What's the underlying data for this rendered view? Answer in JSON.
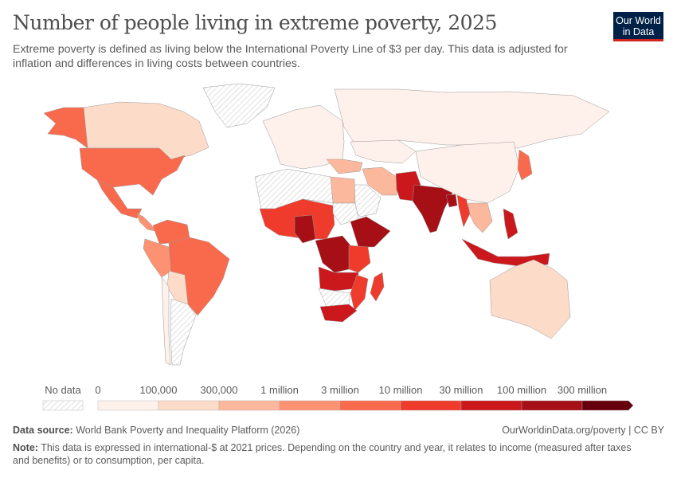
{
  "title": "Number of people living in extreme poverty, 2025",
  "subtitle": "Extreme poverty is defined as living below the International Poverty Line of $3 per day. This data is adjusted for inflation and differences in living costs between countries.",
  "logo": {
    "line1": "Our World",
    "line2": "in Data",
    "bg": "#002147",
    "accent": "#ce261e"
  },
  "legend": {
    "no_data": "No data",
    "labels": [
      "0",
      "100,000",
      "300,000",
      "1 million",
      "3 million",
      "10 million",
      "30 million",
      "100 million",
      "300 million"
    ],
    "colors": [
      "#fef0ea",
      "#fddbc9",
      "#fcb89c",
      "#fc9272",
      "#f96a4d",
      "#ef3b2c",
      "#cb181d",
      "#a50f15",
      "#67000d"
    ]
  },
  "map_data": {
    "Greenland": -1,
    "Canada": 1,
    "Alaska": 4,
    "USA": 4,
    "Mexico": 4,
    "Central America": 3,
    "Colombia-Venezuela": 4,
    "Peru-Ecuador": 3,
    "Brazil": 4,
    "Bolivia-Paraguay": 1,
    "Argentina": -1,
    "Chile": 0,
    "Europe": 0,
    "Russia": 0,
    "Kazakhstan": 0,
    "Turkey": 2,
    "Iran": 2,
    "Saudi Arabia": -1,
    "Pakistan-Afghanistan": 6,
    "India": 7,
    "Bangladesh": 7,
    "Myanmar": 5,
    "China": 0,
    "Southeast Asia": 2,
    "Philippines": 6,
    "Indonesia": 6,
    "Japan": 4,
    "Australia": 1,
    "North Africa": -1,
    "Egypt": 2,
    "West Africa": 5,
    "Nigeria": 7,
    "Ethiopia": 7,
    "Sudan": -1,
    "DR Congo": 7,
    "East Africa": 5,
    "Angola-Zambia": 6,
    "Namibia-Botswana": -1,
    "Mozambique": 5,
    "Madagascar": 5,
    "South Africa": 6
  },
  "source": {
    "label": "Data source:",
    "text": "World Bank Poverty and Inequality Platform (2026)"
  },
  "credit": "OurWorldinData.org/poverty | CC BY",
  "note": {
    "label": "Note:",
    "text": "This data is expressed in international-$ at 2021 prices. Depending on the country and year, it relates to income (measured after taxes and benefits) or to consumption, per capita."
  }
}
